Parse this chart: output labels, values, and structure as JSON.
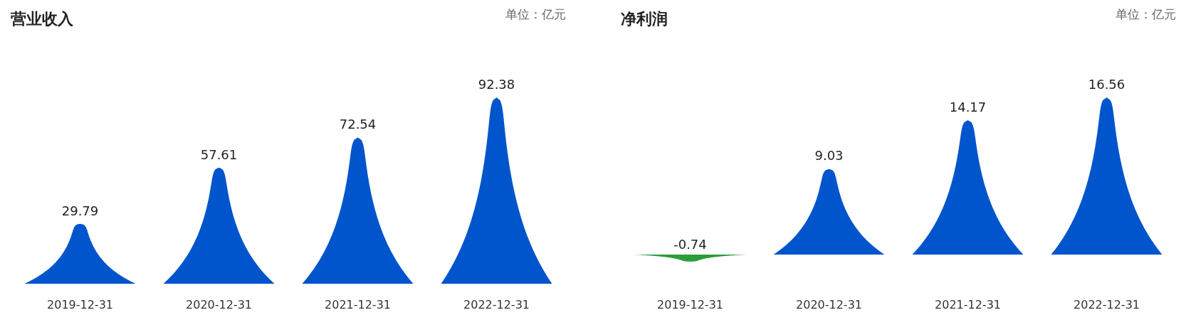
{
  "chart_data": [
    {
      "type": "bar",
      "title": "营业收入",
      "annotations": [
        "单位：亿元"
      ],
      "categories": [
        "2019-12-31",
        "2020-12-31",
        "2021-12-31",
        "2022-12-31"
      ],
      "values": [
        29.79,
        57.61,
        72.54,
        92.38
      ],
      "colors": [
        "#0055cc",
        "#0055cc",
        "#0055cc",
        "#0055cc"
      ],
      "data_labels": true
    },
    {
      "type": "bar",
      "title": "净利润",
      "annotations": [
        "单位：亿元"
      ],
      "categories": [
        "2019-12-31",
        "2020-12-31",
        "2021-12-31",
        "2022-12-31"
      ],
      "values": [
        -0.74,
        9.03,
        14.17,
        16.56
      ],
      "colors": [
        "#2a9d3a",
        "#0055cc",
        "#0055cc",
        "#0055cc"
      ],
      "data_labels": true
    }
  ]
}
